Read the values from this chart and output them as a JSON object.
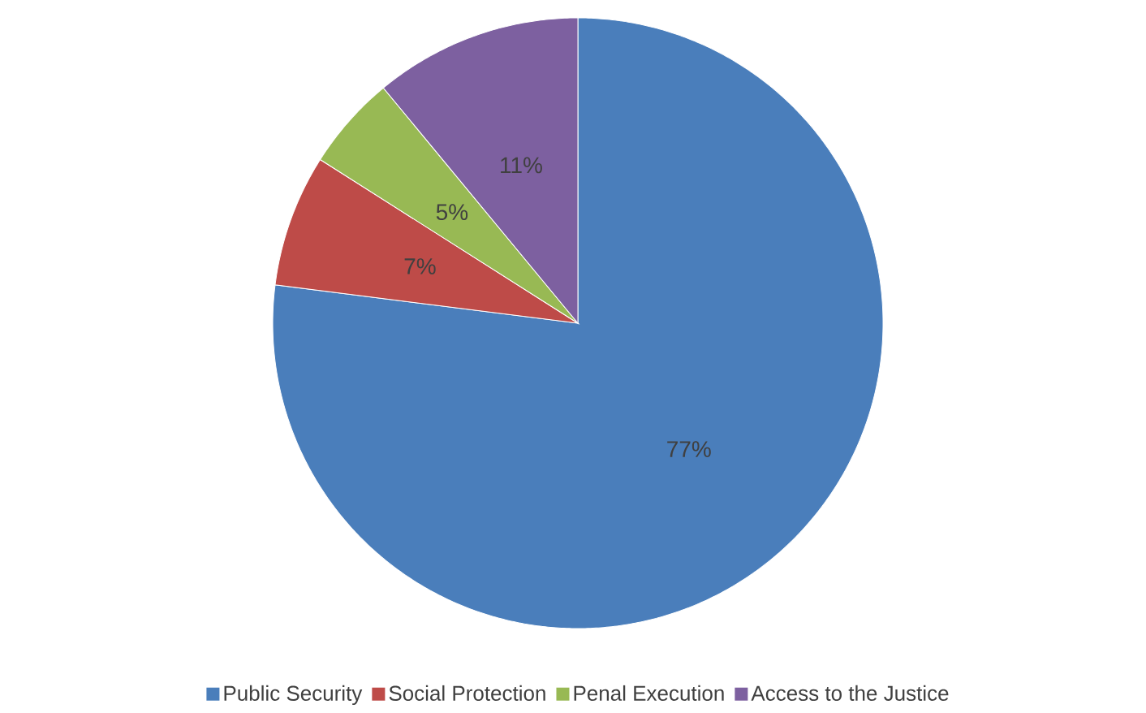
{
  "chart_data": {
    "type": "pie",
    "categories": [
      "Public Security",
      "Social Protection",
      "Penal Execution",
      "Access to the Justice"
    ],
    "values": [
      77,
      7,
      5,
      11
    ],
    "colors": [
      "#4a7ebb",
      "#be4b48",
      "#98b954",
      "#7d60a0"
    ],
    "value_labels": [
      "77%",
      "7%",
      "5%",
      "11%"
    ],
    "legend": "bottom"
  }
}
